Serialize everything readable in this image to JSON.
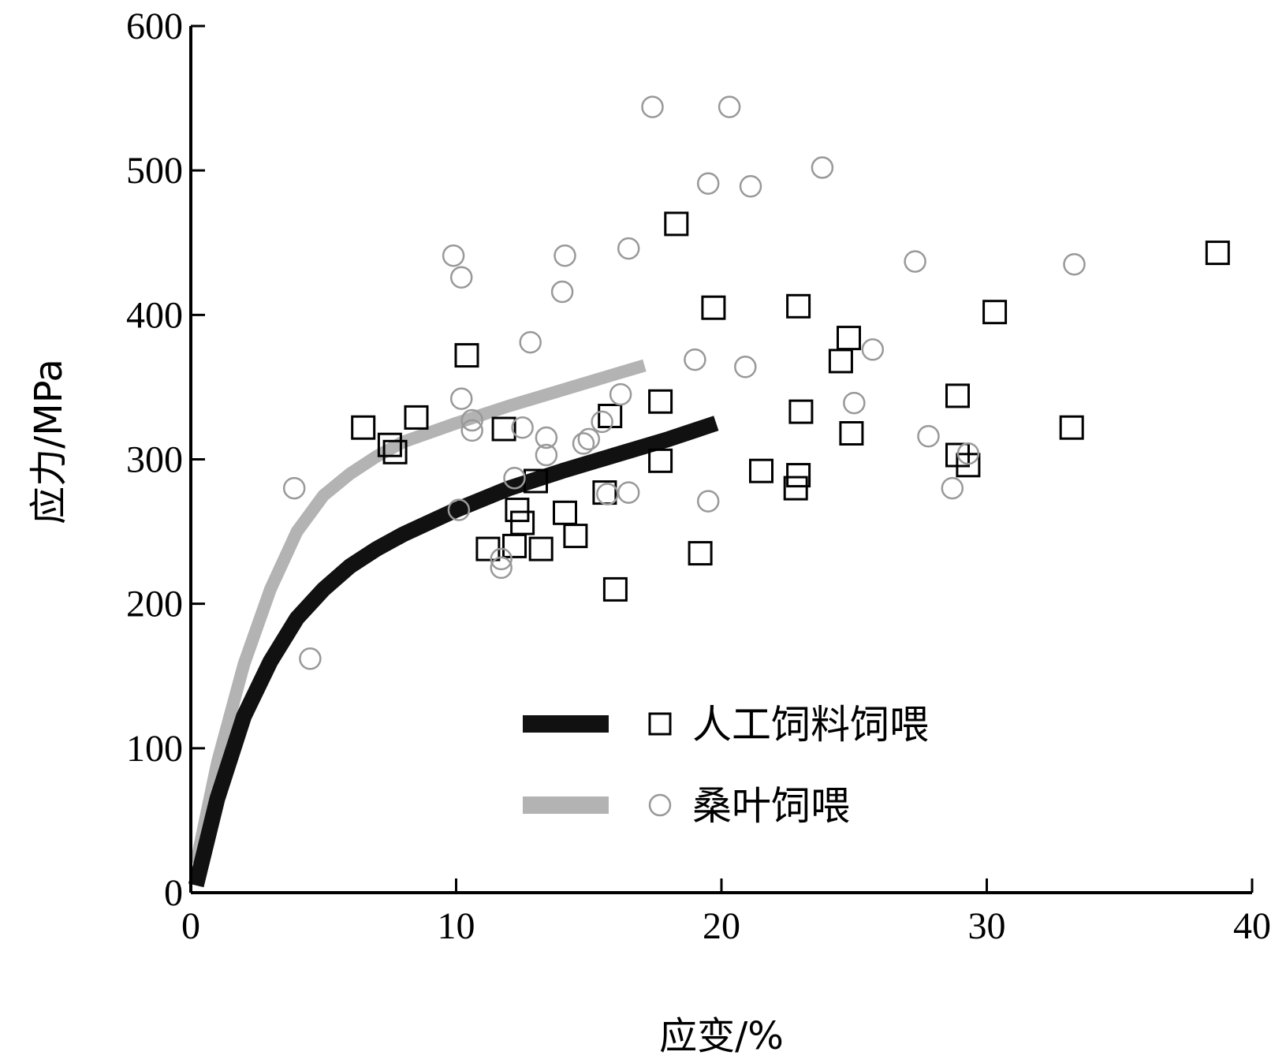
{
  "chart_data": {
    "type": "scatter",
    "xlabel": "应变/%",
    "ylabel": "应力/MPa",
    "xlim": [
      0,
      40
    ],
    "ylim": [
      0,
      600
    ],
    "xticks": [
      "0",
      "10",
      "20",
      "30",
      "40"
    ],
    "yticks": [
      "0",
      "100",
      "200",
      "300",
      "400",
      "500",
      "600"
    ],
    "legend_position": "lower-right",
    "grid": false,
    "series": [
      {
        "name": "人工饲料饲喂",
        "marker": "square",
        "color": "#000000",
        "line_color": "#111111",
        "fit_curve": [
          [
            0.2,
            5
          ],
          [
            1,
            65
          ],
          [
            2,
            122
          ],
          [
            3,
            160
          ],
          [
            4,
            190
          ],
          [
            5,
            210
          ],
          [
            6,
            226
          ],
          [
            7,
            238
          ],
          [
            8,
            248
          ],
          [
            10,
            265
          ],
          [
            12,
            280
          ],
          [
            14,
            292
          ],
          [
            16,
            303
          ],
          [
            18,
            314
          ],
          [
            19.8,
            325
          ]
        ],
        "points": [
          [
            6.5,
            322
          ],
          [
            7.5,
            310
          ],
          [
            7.7,
            305
          ],
          [
            8.5,
            329
          ],
          [
            10.4,
            372
          ],
          [
            11.2,
            238
          ],
          [
            11.8,
            321
          ],
          [
            12.2,
            240
          ],
          [
            12.3,
            265
          ],
          [
            12.5,
            256
          ],
          [
            13,
            285
          ],
          [
            13.2,
            238
          ],
          [
            14.1,
            263
          ],
          [
            14.5,
            247
          ],
          [
            15.6,
            277
          ],
          [
            15.8,
            330
          ],
          [
            16,
            210
          ],
          [
            17.7,
            340
          ],
          [
            17.7,
            299
          ],
          [
            18.3,
            463
          ],
          [
            19.2,
            235
          ],
          [
            19.7,
            405
          ],
          [
            21.5,
            292
          ],
          [
            22.8,
            280
          ],
          [
            22.9,
            406
          ],
          [
            22.9,
            289
          ],
          [
            23,
            333
          ],
          [
            24.5,
            368
          ],
          [
            24.8,
            384
          ],
          [
            24.9,
            318
          ],
          [
            28.9,
            303
          ],
          [
            28.9,
            344
          ],
          [
            29.3,
            296
          ],
          [
            30.3,
            402
          ],
          [
            33.2,
            322
          ],
          [
            38.7,
            443
          ]
        ]
      },
      {
        "name": "桑叶饲喂",
        "marker": "circle",
        "color": "#999999",
        "line_color": "#b3b3b3",
        "fit_curve": [
          [
            0.2,
            20
          ],
          [
            1,
            90
          ],
          [
            2,
            158
          ],
          [
            3,
            210
          ],
          [
            4,
            250
          ],
          [
            5,
            275
          ],
          [
            6,
            290
          ],
          [
            7,
            302
          ],
          [
            8,
            312
          ],
          [
            10,
            325
          ],
          [
            12,
            337
          ],
          [
            14,
            348
          ],
          [
            16,
            359
          ],
          [
            17.1,
            365
          ]
        ],
        "points": [
          [
            3.9,
            280
          ],
          [
            4.5,
            162
          ],
          [
            9.9,
            441
          ],
          [
            10.2,
            426
          ],
          [
            10.2,
            342
          ],
          [
            10.6,
            327
          ],
          [
            10.6,
            320
          ],
          [
            10.1,
            265
          ],
          [
            11.7,
            231
          ],
          [
            11.7,
            225
          ],
          [
            12.2,
            287
          ],
          [
            12.5,
            322
          ],
          [
            12.8,
            381
          ],
          [
            13.4,
            315
          ],
          [
            13.4,
            303
          ],
          [
            14,
            416
          ],
          [
            14.1,
            441
          ],
          [
            14.8,
            311
          ],
          [
            15,
            314
          ],
          [
            15.5,
            326
          ],
          [
            15.7,
            276
          ],
          [
            16.2,
            345
          ],
          [
            16.5,
            446
          ],
          [
            16.5,
            277
          ],
          [
            17.4,
            544
          ],
          [
            19,
            369
          ],
          [
            19.5,
            491
          ],
          [
            19.5,
            271
          ],
          [
            20.3,
            544
          ],
          [
            20.9,
            364
          ],
          [
            21.1,
            489
          ],
          [
            23.8,
            502
          ],
          [
            25,
            339
          ],
          [
            25.7,
            376
          ],
          [
            27.3,
            437
          ],
          [
            27.8,
            316
          ],
          [
            28.7,
            280
          ],
          [
            29.3,
            304
          ],
          [
            33.3,
            435
          ]
        ]
      }
    ]
  }
}
